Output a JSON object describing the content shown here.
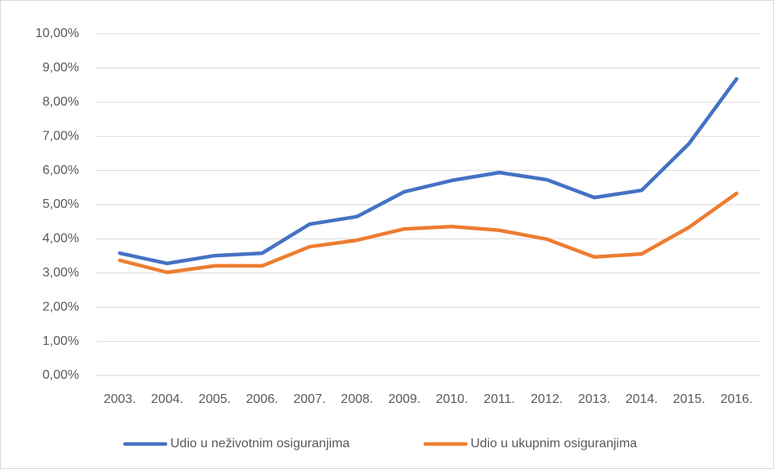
{
  "chart_data": {
    "type": "line",
    "categories": [
      "2003.",
      "2004.",
      "2005.",
      "2006.",
      "2007.",
      "2008.",
      "2009.",
      "2010.",
      "2011.",
      "2012.",
      "2013.",
      "2014.",
      "2015.",
      "2016."
    ],
    "series": [
      {
        "name": "Udio u neživotnim osiguranjima",
        "color": "#4472c4",
        "values": [
          3.58,
          3.28,
          3.51,
          3.58,
          4.43,
          4.65,
          5.38,
          5.71,
          5.94,
          5.73,
          5.21,
          5.42,
          6.79,
          8.68
        ]
      },
      {
        "name": "Udio u ukupnim osiguranjima",
        "color": "#ed7d31",
        "values": [
          3.37,
          3.02,
          3.21,
          3.21,
          3.77,
          3.96,
          4.29,
          4.36,
          4.25,
          3.99,
          3.47,
          3.56,
          4.34,
          5.33
        ]
      }
    ],
    "ylim": [
      0,
      10
    ],
    "yticks": [
      {
        "value": 0,
        "label": "0,00%"
      },
      {
        "value": 1,
        "label": "1,00%"
      },
      {
        "value": 2,
        "label": "2,00%"
      },
      {
        "value": 3,
        "label": "3,00%"
      },
      {
        "value": 4,
        "label": "4,00%"
      },
      {
        "value": 5,
        "label": "5,00%"
      },
      {
        "value": 6,
        "label": "6,00%"
      },
      {
        "value": 7,
        "label": "7,00%"
      },
      {
        "value": 8,
        "label": "8,00%"
      },
      {
        "value": 9,
        "label": "9,00%"
      },
      {
        "value": 10,
        "label": "10,00%"
      }
    ],
    "grid": true,
    "legend": "bottom"
  }
}
